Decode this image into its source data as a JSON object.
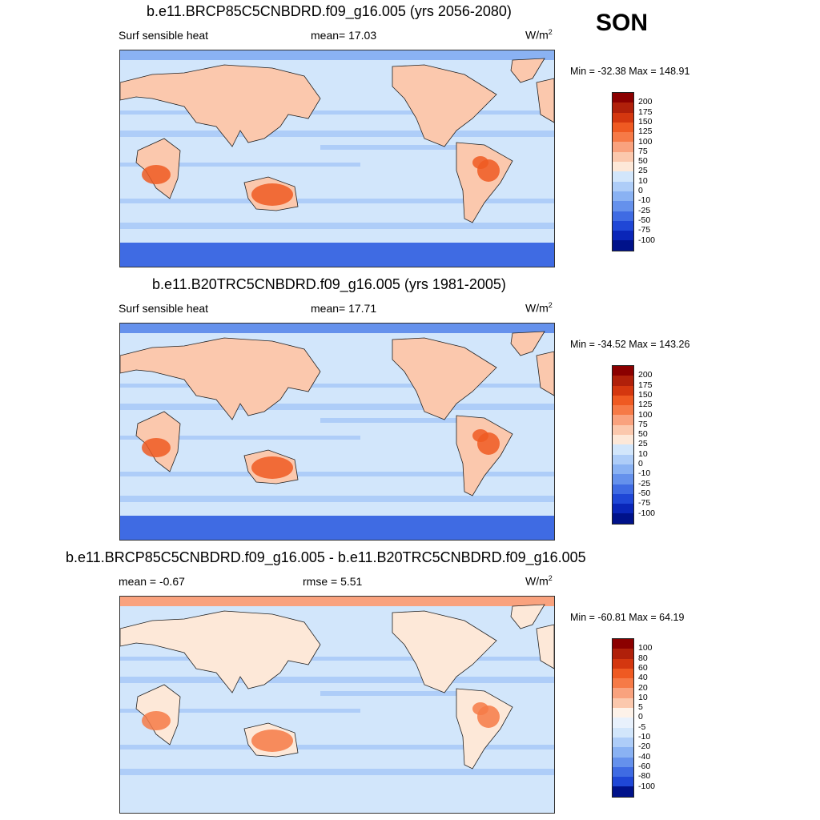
{
  "season": "SON",
  "panels": [
    {
      "title": "b.e11.BRCP85C5CNBDRD.f09_g16.005 (yrs 2056-2080)",
      "left_label": "Surf sensible heat",
      "center_label": "mean=  17.03",
      "units": "W/m",
      "units_sup": "2",
      "minmax": "Min = -32.38 Max = 148.91",
      "colorbar": {
        "labels": [
          "200",
          "175",
          "150",
          "125",
          "100",
          "75",
          "50",
          "25",
          "10",
          "0",
          "-10",
          "-25",
          "-50",
          "-75",
          "-100"
        ],
        "colors": [
          "#8b0000",
          "#b0200a",
          "#d4370f",
          "#ef5a22",
          "#f67a47",
          "#f9a27e",
          "#fbc8ad",
          "#fde8d8",
          "#d2e6fb",
          "#aecdf8",
          "#8ab2f3",
          "#6591ec",
          "#3f6be3",
          "#1f47d6",
          "#0a26b8",
          "#00128a"
        ]
      }
    },
    {
      "title": "b.e11.B20TRC5CNBDRD.f09_g16.005 (yrs 1981-2005)",
      "left_label": "Surf sensible heat",
      "center_label": "mean=  17.71",
      "units": "W/m",
      "units_sup": "2",
      "minmax": "Min = -34.52 Max = 143.26",
      "colorbar": {
        "labels": [
          "200",
          "175",
          "150",
          "125",
          "100",
          "75",
          "50",
          "25",
          "10",
          "0",
          "-10",
          "-25",
          "-50",
          "-75",
          "-100"
        ],
        "colors": [
          "#8b0000",
          "#b0200a",
          "#d4370f",
          "#ef5a22",
          "#f67a47",
          "#f9a27e",
          "#fbc8ad",
          "#fde8d8",
          "#d2e6fb",
          "#aecdf8",
          "#8ab2f3",
          "#6591ec",
          "#3f6be3",
          "#1f47d6",
          "#0a26b8",
          "#00128a"
        ]
      }
    },
    {
      "title": "b.e11.BRCP85C5CNBDRD.f09_g16.005 - b.e11.B20TRC5CNBDRD.f09_g16.005",
      "left_label": "mean =  -0.67",
      "center_label": "rmse =   5.51",
      "units": "W/m",
      "units_sup": "2",
      "minmax": "Min = -60.81 Max =  64.19",
      "colorbar": {
        "labels": [
          "100",
          "80",
          "60",
          "40",
          "20",
          "10",
          "5",
          "0",
          "-5",
          "-10",
          "-20",
          "-40",
          "-60",
          "-80",
          "-100"
        ],
        "colors": [
          "#8b0000",
          "#b0200a",
          "#d4370f",
          "#ef5a22",
          "#f67a47",
          "#f9a27e",
          "#fbc8ad",
          "#fdf2e9",
          "#e8f1fc",
          "#d2e6fb",
          "#aecdf8",
          "#8ab2f3",
          "#6591ec",
          "#3f6be3",
          "#1f47d6",
          "#00128a"
        ]
      }
    }
  ]
}
